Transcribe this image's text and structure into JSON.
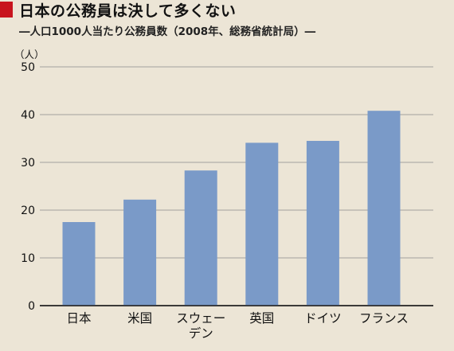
{
  "colors": {
    "background": "#ece5d6",
    "bar": "#7a9ac8",
    "grid": "#8a8a8a",
    "title_marker": "#c8141e"
  },
  "chart_data": {
    "type": "bar",
    "title": "日本の公務員は決して多くない",
    "subtitle": "―人口1000人当たり公務員数（2008年、総務省統計局）―",
    "ylabel": "（人）",
    "xlabel": "",
    "ylim": [
      0,
      50
    ],
    "yticks": [
      "0",
      "10",
      "20",
      "30",
      "40",
      "50"
    ],
    "grid": true,
    "categories": [
      [
        "日本"
      ],
      [
        "米国"
      ],
      [
        "スウェー",
        "デン"
      ],
      [
        "英国"
      ],
      [
        "ドイツ"
      ],
      [
        "フランス"
      ]
    ],
    "values": [
      17.5,
      22.2,
      28.3,
      34.1,
      34.5,
      40.8
    ]
  }
}
